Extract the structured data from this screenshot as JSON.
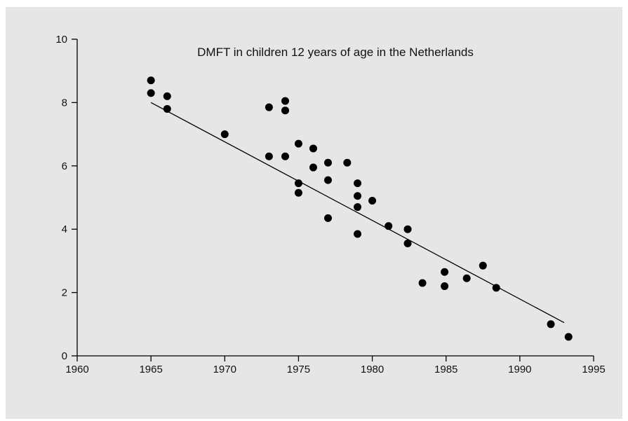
{
  "chart_data": {
    "type": "scatter",
    "title": "DMFT in children 12 years of age in the Netherlands",
    "xlabel": "",
    "ylabel": "",
    "xlim": [
      1960,
      1995
    ],
    "ylim": [
      0,
      10
    ],
    "x_ticks": [
      1960,
      1965,
      1970,
      1975,
      1980,
      1985,
      1990,
      1995
    ],
    "y_ticks": [
      0,
      2,
      4,
      6,
      8,
      10
    ],
    "grid": false,
    "colors": {
      "background": "#e6e6e6",
      "points": "#000000",
      "line": "#000000",
      "axis": "#000000"
    },
    "series": [
      {
        "points": [
          {
            "x": 1965.0,
            "y": 8.7
          },
          {
            "x": 1965.0,
            "y": 8.3
          },
          {
            "x": 1966.1,
            "y": 8.2
          },
          {
            "x": 1966.1,
            "y": 7.8
          },
          {
            "x": 1970.0,
            "y": 7.0
          },
          {
            "x": 1973.0,
            "y": 7.85
          },
          {
            "x": 1973.0,
            "y": 6.3
          },
          {
            "x": 1974.1,
            "y": 8.05
          },
          {
            "x": 1974.1,
            "y": 7.75
          },
          {
            "x": 1974.1,
            "y": 6.3
          },
          {
            "x": 1975.0,
            "y": 6.7
          },
          {
            "x": 1975.0,
            "y": 5.45
          },
          {
            "x": 1975.0,
            "y": 5.15
          },
          {
            "x": 1976.0,
            "y": 6.55
          },
          {
            "x": 1976.0,
            "y": 5.95
          },
          {
            "x": 1977.0,
            "y": 6.1
          },
          {
            "x": 1977.0,
            "y": 5.55
          },
          {
            "x": 1977.0,
            "y": 4.35
          },
          {
            "x": 1978.3,
            "y": 6.1
          },
          {
            "x": 1979.0,
            "y": 5.45
          },
          {
            "x": 1979.0,
            "y": 5.05
          },
          {
            "x": 1979.0,
            "y": 4.7
          },
          {
            "x": 1979.0,
            "y": 3.85
          },
          {
            "x": 1980.0,
            "y": 4.9
          },
          {
            "x": 1981.1,
            "y": 4.1
          },
          {
            "x": 1982.4,
            "y": 4.0
          },
          {
            "x": 1982.4,
            "y": 3.55
          },
          {
            "x": 1983.4,
            "y": 2.3
          },
          {
            "x": 1984.9,
            "y": 2.65
          },
          {
            "x": 1984.9,
            "y": 2.2
          },
          {
            "x": 1986.4,
            "y": 2.45
          },
          {
            "x": 1987.5,
            "y": 2.85
          },
          {
            "x": 1988.4,
            "y": 2.15
          },
          {
            "x": 1992.1,
            "y": 1.0
          },
          {
            "x": 1993.3,
            "y": 0.6
          }
        ]
      }
    ],
    "trend_line": {
      "x": [
        1965.0,
        1993.0
      ],
      "y": [
        8.0,
        1.05
      ]
    }
  }
}
